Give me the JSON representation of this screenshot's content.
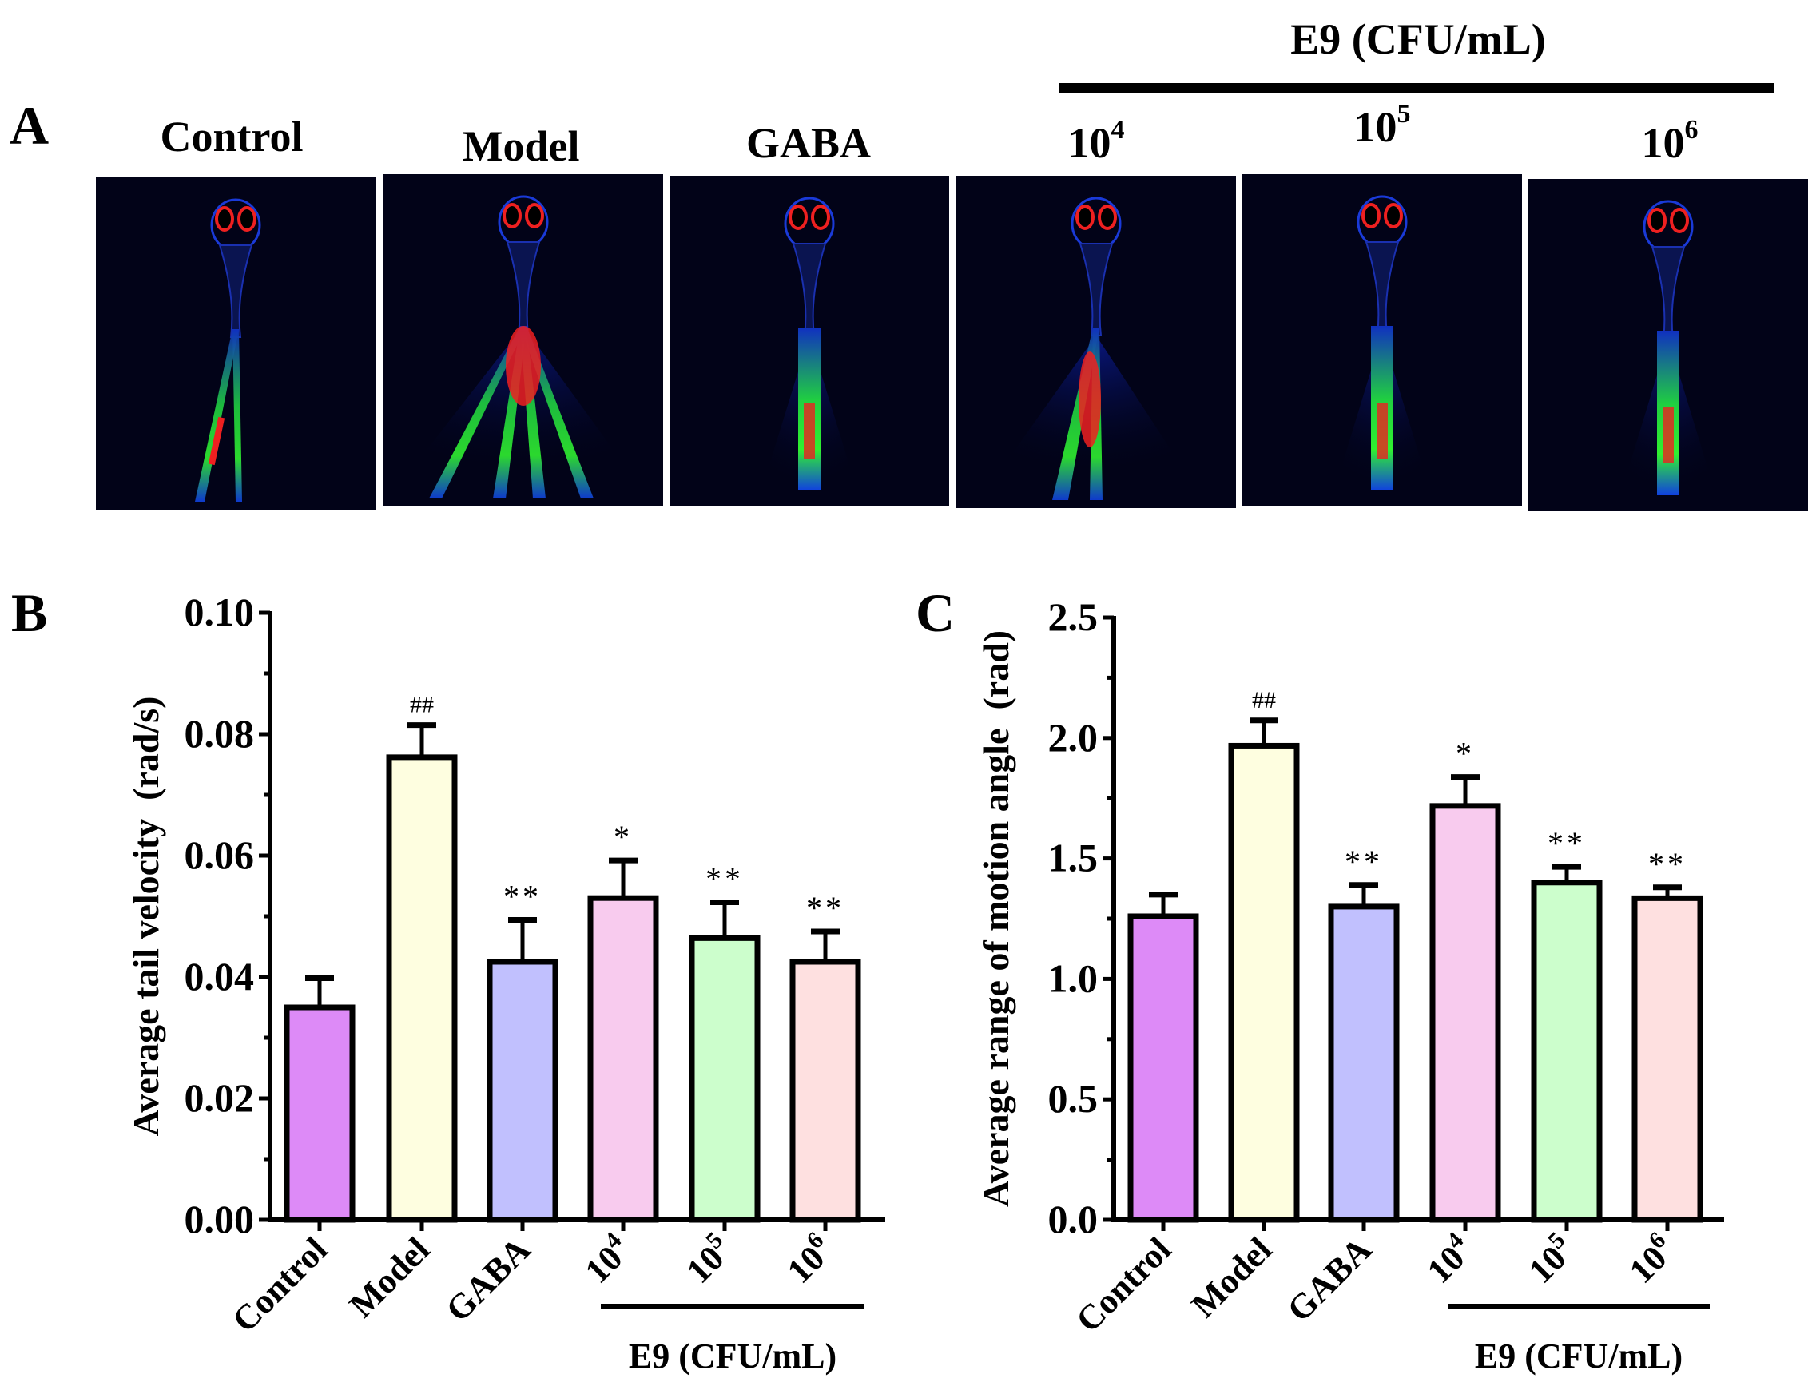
{
  "panel_a": {
    "letter": "A",
    "group_label": "E9 (CFU/mL)",
    "images": [
      {
        "label": "Control",
        "exp": "",
        "pattern": "two-tails"
      },
      {
        "label": "Model",
        "exp": "",
        "pattern": "wide-fan"
      },
      {
        "label": "GABA",
        "exp": "",
        "pattern": "straight"
      },
      {
        "label": "10",
        "exp": "4",
        "pattern": "fan"
      },
      {
        "label": "10",
        "exp": "5",
        "pattern": "straight"
      },
      {
        "label": "10",
        "exp": "6",
        "pattern": "straight-narrow-fan"
      }
    ]
  },
  "colors": {
    "Control": "#dd8af7",
    "Model": "#fefee0",
    "GABA": "#c1c0fe",
    "10^4": "#f8cbee",
    "10^5": "#ccfecc",
    "10^6": "#fee0e0"
  },
  "chart_data": [
    {
      "panel": "B",
      "type": "bar",
      "title": "",
      "ylabel": "Average tail velocity  (rad/s)",
      "xlabel": "",
      "group_label": "E9 (CFU/mL)",
      "categories": [
        "Control",
        "Model",
        "GABA",
        "10^4",
        "10^5",
        "10^6"
      ],
      "category_labels": [
        {
          "base": "Control",
          "exp": ""
        },
        {
          "base": "Model",
          "exp": ""
        },
        {
          "base": "GABA",
          "exp": ""
        },
        {
          "base": "10",
          "exp": "4"
        },
        {
          "base": "10",
          "exp": "5"
        },
        {
          "base": "10",
          "exp": "6"
        }
      ],
      "values": [
        0.035,
        0.0762,
        0.0425,
        0.053,
        0.0464,
        0.0425
      ],
      "errors": [
        0.0048,
        0.0053,
        0.0069,
        0.0062,
        0.0059,
        0.005
      ],
      "annotations": [
        "",
        "##",
        "**",
        "*",
        "**",
        "**"
      ],
      "ylim": [
        0,
        0.1
      ],
      "yticks": [
        0.0,
        0.02,
        0.04,
        0.06,
        0.08,
        0.1
      ],
      "ytick_labels": [
        "0.00",
        "0.02",
        "0.04",
        "0.06",
        "0.08",
        "0.10"
      ],
      "minor_ticks": [
        0.01,
        0.03,
        0.05,
        0.07,
        0.09
      ],
      "grid": false,
      "legend": "none"
    },
    {
      "panel": "C",
      "type": "bar",
      "title": "",
      "ylabel": "Average range of motion angle  (rad)",
      "xlabel": "",
      "group_label": "E9 (CFU/mL)",
      "categories": [
        "Control",
        "Model",
        "GABA",
        "10^4",
        "10^5",
        "10^6"
      ],
      "category_labels": [
        {
          "base": "Control",
          "exp": ""
        },
        {
          "base": "Model",
          "exp": ""
        },
        {
          "base": "GABA",
          "exp": ""
        },
        {
          "base": "10",
          "exp": "4"
        },
        {
          "base": "10",
          "exp": "5"
        },
        {
          "base": "10",
          "exp": "6"
        }
      ],
      "values": [
        1.26,
        1.968,
        1.3,
        1.718,
        1.4,
        1.335
      ],
      "errors": [
        0.09,
        0.105,
        0.09,
        0.12,
        0.065,
        0.045
      ],
      "annotations": [
        "",
        "##",
        "**",
        "*",
        "**",
        "**"
      ],
      "ylim": [
        0,
        2.5
      ],
      "yticks": [
        0.0,
        0.5,
        1.0,
        1.5,
        2.0,
        2.5
      ],
      "ytick_labels": [
        "0.0",
        "0.5",
        "1.0",
        "1.5",
        "2.0",
        "2.5"
      ],
      "minor_ticks": [
        0.25,
        0.75,
        1.25,
        1.75,
        2.25
      ],
      "grid": false,
      "legend": "none"
    }
  ],
  "panel_b": {
    "letter": "B"
  },
  "panel_c": {
    "letter": "C"
  }
}
